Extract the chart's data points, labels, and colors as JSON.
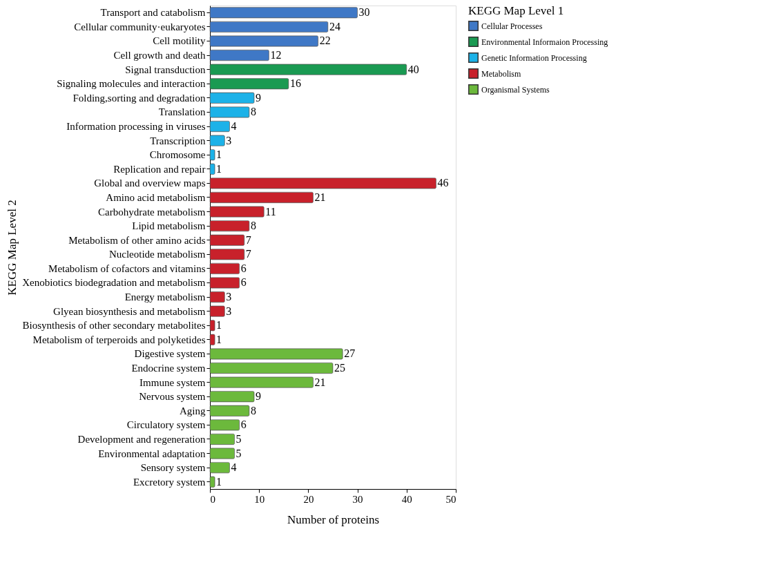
{
  "chart_data": {
    "type": "bar",
    "orientation": "horizontal",
    "xlabel": "Number of proteins",
    "ylabel": "KEGG Map Level 2",
    "legend_title": "KEGG Map Level 1",
    "categories": [
      "Transport and catabolism",
      "Cellular community·eukaryotes",
      "Cell motility",
      "Cell growth and death",
      "Signal transduction",
      "Signaling molecules and interaction",
      "Folding,sorting and degradation",
      "Translation",
      "Information processing in viruses",
      "Transcription",
      "Chromosome",
      "Replication and repair",
      "Global and overview maps",
      "Amino acid metabolism",
      "Carbohydrate metabolism",
      "Lipid metabolism",
      "Metabolism of other amino acids",
      "Nucleotide metabolism",
      "Metabolism of cofactors and vitamins",
      "Xenobiotics biodegradation and metabolism",
      "Energy metabolism",
      "Glyean biosynthesis and metabolism",
      "Biosynthesis of other secondary metabolites",
      "Metabolism of terperoids and polyketides",
      "Digestive system",
      "Endocrine system",
      "Immune system",
      "Nervous system",
      "Aging",
      "Circulatory system",
      "Development and regeneration",
      "Environmental adaptation",
      "Sensory system",
      "Excretory system"
    ],
    "series": [
      {
        "name": "Cellular Processes",
        "color": "#3f78c6",
        "values": [
          30,
          24,
          22,
          12,
          null,
          null,
          null,
          null,
          null,
          null,
          null,
          null,
          null,
          null,
          null,
          null,
          null,
          null,
          null,
          null,
          null,
          null,
          null,
          null,
          null,
          null,
          null,
          null,
          null,
          null,
          null,
          null,
          null,
          null
        ]
      },
      {
        "name": "Environmental Informaion Processing",
        "color": "#1a9a52",
        "values": [
          null,
          null,
          null,
          null,
          40,
          16,
          null,
          null,
          null,
          null,
          null,
          null,
          null,
          null,
          null,
          null,
          null,
          null,
          null,
          null,
          null,
          null,
          null,
          null,
          null,
          null,
          null,
          null,
          null,
          null,
          null,
          null,
          null,
          null
        ]
      },
      {
        "name": "Genetic Information Processing",
        "color": "#1cb2e8",
        "values": [
          null,
          null,
          null,
          null,
          null,
          null,
          9,
          8,
          4,
          3,
          1,
          1,
          null,
          null,
          null,
          null,
          null,
          null,
          null,
          null,
          null,
          null,
          null,
          null,
          null,
          null,
          null,
          null,
          null,
          null,
          null,
          null,
          null,
          null
        ]
      },
      {
        "name": "Metabolism",
        "color": "#c8212b",
        "values": [
          null,
          null,
          null,
          null,
          null,
          null,
          null,
          null,
          null,
          null,
          null,
          null,
          46,
          21,
          11,
          8,
          7,
          7,
          6,
          6,
          3,
          3,
          1,
          1,
          null,
          null,
          null,
          null,
          null,
          null,
          null,
          null,
          null,
          null
        ]
      },
      {
        "name": "Organismal Systems",
        "color": "#6cb93c",
        "values": [
          null,
          null,
          null,
          null,
          null,
          null,
          null,
          null,
          null,
          null,
          null,
          null,
          null,
          null,
          null,
          null,
          null,
          null,
          null,
          null,
          null,
          null,
          null,
          null,
          27,
          25,
          21,
          9,
          8,
          6,
          5,
          5,
          4,
          1
        ]
      }
    ],
    "xlim": [
      0,
      50
    ],
    "xticks": [
      0,
      10,
      20,
      30,
      40,
      50
    ],
    "grid": false,
    "legend": "right",
    "data_labels": true
  }
}
